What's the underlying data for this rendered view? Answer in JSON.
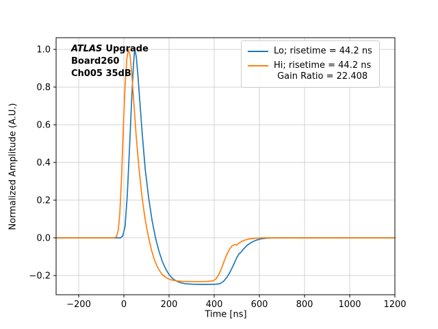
{
  "figure": {
    "background": "#ffffff"
  },
  "annotation": {
    "atlas": "ATLAS",
    "upgrade": "Upgrade",
    "board": "Board260",
    "channel": "Ch005 35dB"
  },
  "legend": {
    "lo_label": "Lo; risetime = 44.2 ns",
    "hi_label": "Hi; risetime = 44.2 ns",
    "gain_label": "Gain Ratio = 22.408"
  },
  "chart_data": {
    "type": "line",
    "title": "",
    "xlabel": "Time [ns]",
    "ylabel": "Normalized Amplitude (A.U.)",
    "xlim": [
      -300,
      1200
    ],
    "ylim": [
      -0.302,
      1.062
    ],
    "grid": true,
    "legend_position": "upper right",
    "x_ticks": {
      "values": [
        -200,
        0,
        200,
        400,
        600,
        800,
        1000,
        1200
      ],
      "labels": [
        "−200",
        "0",
        "200",
        "400",
        "600",
        "800",
        "1000",
        "1200"
      ]
    },
    "y_ticks": {
      "values": [
        -0.2,
        0.0,
        0.2,
        0.4,
        0.6,
        0.8,
        1.0
      ],
      "labels": [
        "−0.2",
        "0.0",
        "0.2",
        "0.4",
        "0.6",
        "0.8",
        "1.0"
      ]
    },
    "annotations": [
      "ATLAS Upgrade",
      "Board260",
      "Ch005 35dB"
    ],
    "series": [
      {
        "name": "Lo; risetime = 44.2 ns",
        "color": "#1f77b4",
        "points": [
          [
            -300,
            0
          ],
          [
            -150,
            0
          ],
          [
            -60,
            0
          ],
          [
            -30,
            0
          ],
          [
            -15,
            0
          ],
          [
            -5,
            0.01
          ],
          [
            5,
            0.06
          ],
          [
            15,
            0.22
          ],
          [
            25,
            0.48
          ],
          [
            35,
            0.75
          ],
          [
            43,
            0.93
          ],
          [
            48,
            1.0
          ],
          [
            55,
            0.96
          ],
          [
            63,
            0.85
          ],
          [
            72,
            0.7
          ],
          [
            82,
            0.54
          ],
          [
            95,
            0.36
          ],
          [
            110,
            0.21
          ],
          [
            125,
            0.09
          ],
          [
            140,
            0.0
          ],
          [
            155,
            -0.07
          ],
          [
            170,
            -0.125
          ],
          [
            185,
            -0.165
          ],
          [
            200,
            -0.195
          ],
          [
            215,
            -0.215
          ],
          [
            230,
            -0.228
          ],
          [
            250,
            -0.238
          ],
          [
            270,
            -0.243
          ],
          [
            300,
            -0.246
          ],
          [
            340,
            -0.247
          ],
          [
            380,
            -0.247
          ],
          [
            410,
            -0.246
          ],
          [
            425,
            -0.243
          ],
          [
            440,
            -0.232
          ],
          [
            455,
            -0.212
          ],
          [
            470,
            -0.182
          ],
          [
            485,
            -0.145
          ],
          [
            500,
            -0.105
          ],
          [
            510,
            -0.085
          ],
          [
            518,
            -0.078
          ],
          [
            528,
            -0.062
          ],
          [
            545,
            -0.04
          ],
          [
            565,
            -0.024
          ],
          [
            585,
            -0.013
          ],
          [
            605,
            -0.006
          ],
          [
            630,
            -0.002
          ],
          [
            670,
            0
          ],
          [
            750,
            0
          ],
          [
            900,
            0
          ],
          [
            1050,
            0
          ],
          [
            1200,
            0
          ]
        ]
      },
      {
        "name": "Hi; risetime = 44.2 ns\nGain Ratio = 22.408",
        "color": "#ff7f0e",
        "points": [
          [
            -300,
            0
          ],
          [
            -150,
            0
          ],
          [
            -70,
            0
          ],
          [
            -45,
            0
          ],
          [
            -33,
            0.005
          ],
          [
            -25,
            0.04
          ],
          [
            -18,
            0.13
          ],
          [
            -10,
            0.33
          ],
          [
            -2,
            0.6
          ],
          [
            6,
            0.82
          ],
          [
            13,
            0.95
          ],
          [
            20,
            1.0
          ],
          [
            27,
            0.97
          ],
          [
            35,
            0.87
          ],
          [
            44,
            0.72
          ],
          [
            54,
            0.55
          ],
          [
            66,
            0.38
          ],
          [
            80,
            0.22
          ],
          [
            94,
            0.1
          ],
          [
            108,
            0.01
          ],
          [
            122,
            -0.065
          ],
          [
            136,
            -0.12
          ],
          [
            152,
            -0.163
          ],
          [
            168,
            -0.192
          ],
          [
            185,
            -0.21
          ],
          [
            205,
            -0.222
          ],
          [
            230,
            -0.228
          ],
          [
            260,
            -0.231
          ],
          [
            300,
            -0.232
          ],
          [
            340,
            -0.232
          ],
          [
            375,
            -0.231
          ],
          [
            395,
            -0.228
          ],
          [
            408,
            -0.218
          ],
          [
            420,
            -0.196
          ],
          [
            432,
            -0.163
          ],
          [
            444,
            -0.124
          ],
          [
            456,
            -0.088
          ],
          [
            468,
            -0.06
          ],
          [
            480,
            -0.042
          ],
          [
            492,
            -0.035
          ],
          [
            500,
            -0.038
          ],
          [
            508,
            -0.03
          ],
          [
            520,
            -0.02
          ],
          [
            535,
            -0.012
          ],
          [
            555,
            -0.006
          ],
          [
            580,
            -0.002
          ],
          [
            620,
            0
          ],
          [
            700,
            0
          ],
          [
            850,
            0
          ],
          [
            1000,
            0
          ],
          [
            1200,
            0
          ]
        ]
      }
    ]
  }
}
